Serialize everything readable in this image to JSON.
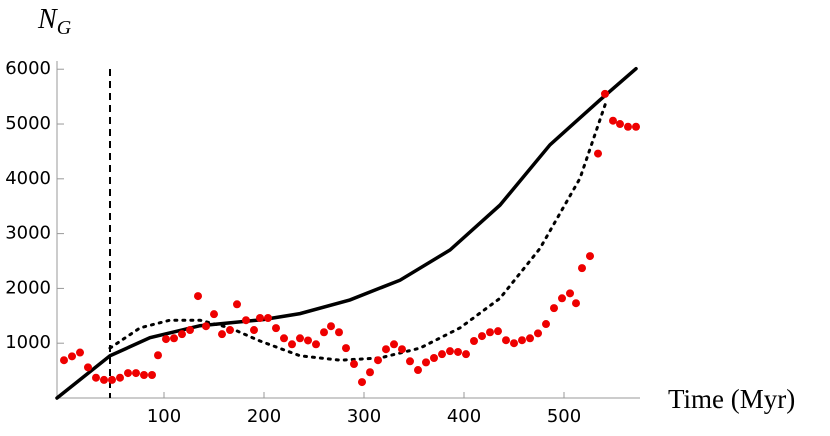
{
  "chart_data": {
    "type": "scatter",
    "ylabel": "N",
    "ylabel_subscript": "G",
    "xlabel": "Time (Myr)",
    "xlim": [
      -7,
      576
    ],
    "ylim": [
      0,
      6150
    ],
    "xticks": [
      100,
      200,
      300,
      400,
      500
    ],
    "yticks": [
      1000,
      2000,
      3000,
      4000,
      5000,
      6000
    ],
    "vline": 46,
    "series": [
      {
        "style": "dots",
        "color": "#ee0000",
        "x": [
          0,
          8,
          16,
          24,
          32,
          40,
          48,
          56,
          64,
          72,
          80,
          88,
          94,
          102,
          110,
          118,
          126,
          134,
          142,
          150,
          158,
          166,
          173,
          182,
          190,
          196,
          204,
          212,
          220,
          228,
          236,
          244,
          252,
          260,
          267,
          275,
          282,
          290,
          298,
          306,
          314,
          322,
          330,
          338,
          346,
          354,
          362,
          370,
          378,
          386,
          394,
          402,
          410,
          418,
          426,
          434,
          442,
          450,
          458,
          466,
          474,
          482,
          490,
          498,
          506,
          512,
          518,
          526,
          534,
          541,
          549,
          556,
          564,
          572
        ],
        "values": [
          690,
          760,
          830,
          560,
          370,
          330,
          330,
          370,
          455,
          455,
          420,
          420,
          780,
          1075,
          1090,
          1165,
          1240,
          1860,
          1310,
          1530,
          1165,
          1240,
          1710,
          1420,
          1240,
          1460,
          1460,
          1275,
          1090,
          980,
          1090,
          1050,
          980,
          1200,
          1310,
          1200,
          910,
          620,
          290,
          470,
          690,
          890,
          980,
          890,
          670,
          510,
          650,
          730,
          800,
          855,
          840,
          800,
          1040,
          1130,
          1200,
          1220,
          1055,
          1000,
          1055,
          1090,
          1180,
          1350,
          1640,
          1820,
          1910,
          1730,
          2370,
          2590,
          4460,
          5550,
          5060,
          5000,
          4950,
          4950
        ]
      },
      {
        "style": "solid",
        "color": "#000000",
        "x": [
          -7,
          46,
          86,
          136,
          199,
          236,
          286,
          336,
          386,
          436,
          486,
          536,
          572
        ],
        "values": [
          0,
          770,
          1100,
          1320,
          1430,
          1540,
          1790,
          2150,
          2700,
          3520,
          4620,
          5440,
          6010
        ]
      },
      {
        "style": "dotted",
        "color": "#000000",
        "x": [
          46,
          76,
          106,
          136,
          166,
          196,
          236,
          276,
          316,
          356,
          396,
          436,
          476,
          516,
          542
        ],
        "values": [
          910,
          1280,
          1420,
          1420,
          1280,
          1040,
          770,
          690,
          730,
          910,
          1280,
          1820,
          2730,
          4010,
          5400
        ]
      }
    ]
  }
}
